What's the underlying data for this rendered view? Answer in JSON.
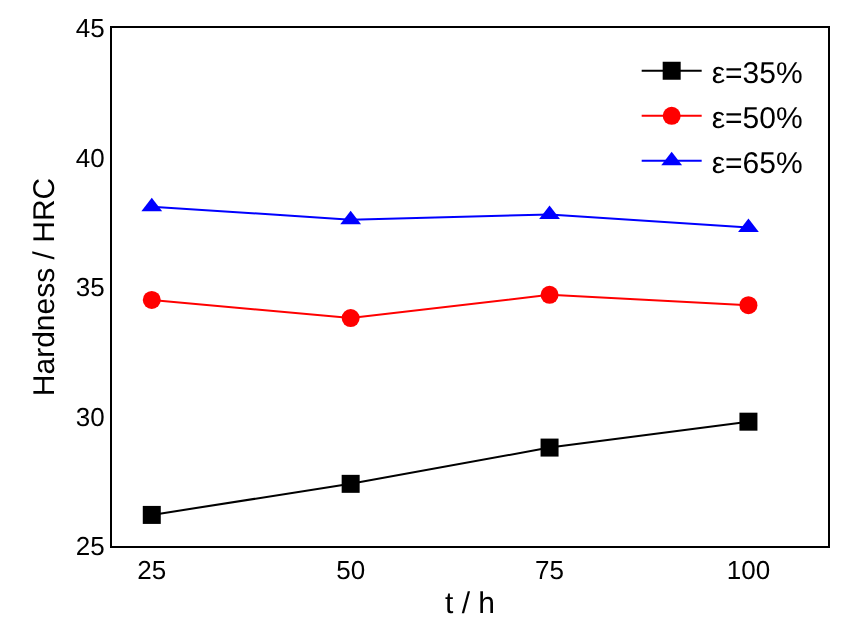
{
  "chart_data": {
    "type": "line",
    "xlabel": "t / h",
    "ylabel": "Hardness / HRC",
    "x": [
      25,
      50,
      75,
      100
    ],
    "series": [
      {
        "name": "ε=35%",
        "color": "#000000",
        "marker": "square",
        "values": [
          26.2,
          27.4,
          28.8,
          29.8
        ]
      },
      {
        "name": "ε=50%",
        "color": "#ff0000",
        "marker": "circle",
        "values": [
          34.5,
          33.8,
          34.7,
          34.3
        ]
      },
      {
        "name": "ε=65%",
        "color": "#0000ff",
        "marker": "triangle",
        "values": [
          38.1,
          37.6,
          37.8,
          37.3
        ]
      }
    ],
    "xlim": [
      20,
      110
    ],
    "xticks": [
      25,
      50,
      75,
      100
    ],
    "ylim": [
      25,
      45
    ],
    "yticks": [
      25,
      30,
      35,
      40,
      45
    ],
    "legend": "top right",
    "line_style": "solid"
  }
}
